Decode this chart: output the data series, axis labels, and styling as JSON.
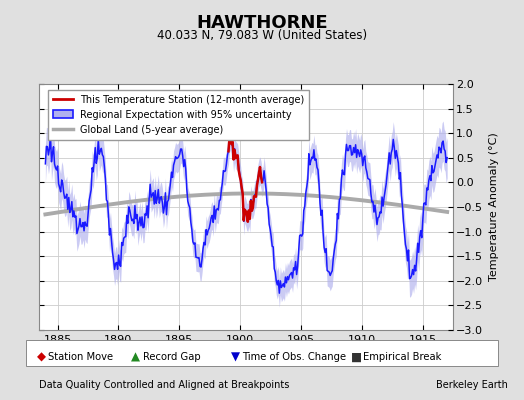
{
  "title": "HAWTHORNE",
  "subtitle": "40.033 N, 79.083 W (United States)",
  "ylabel": "Temperature Anomaly (°C)",
  "xlabel_note": "Data Quality Controlled and Aligned at Breakpoints",
  "credit": "Berkeley Earth",
  "xlim": [
    1883.5,
    1917.5
  ],
  "ylim": [
    -3.0,
    2.0
  ],
  "yticks": [
    -3,
    -2.5,
    -2,
    -1.5,
    -1,
    -0.5,
    0,
    0.5,
    1,
    1.5,
    2
  ],
  "xticks": [
    1885,
    1890,
    1895,
    1900,
    1905,
    1910,
    1915
  ],
  "bg_color": "#e0e0e0",
  "plot_bg_color": "#ffffff",
  "grid_color": "#cccccc",
  "regional_color": "#1a1aff",
  "regional_fill_color": "#b0b0ee",
  "global_color": "#aaaaaa",
  "station_color": "#cc0000",
  "bottom_legend": [
    {
      "label": "Station Move",
      "color": "#cc0000",
      "marker": "D"
    },
    {
      "label": "Record Gap",
      "color": "#228822",
      "marker": "^"
    },
    {
      "label": "Time of Obs. Change",
      "color": "#0000cc",
      "marker": "v"
    },
    {
      "label": "Empirical Break",
      "color": "#333333",
      "marker": "s"
    }
  ]
}
